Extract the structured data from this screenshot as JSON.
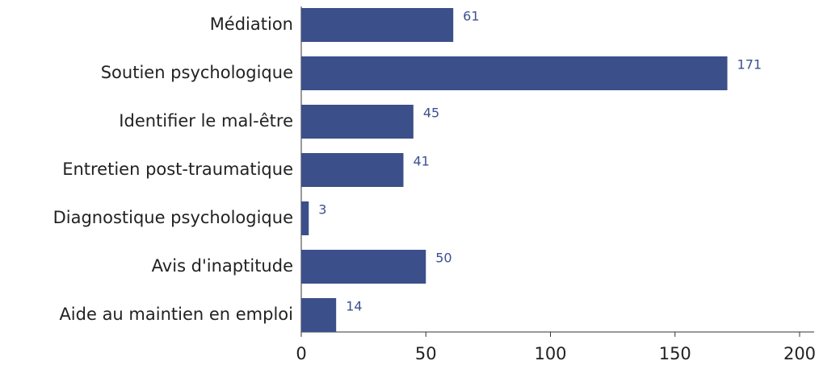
{
  "chart_data": {
    "type": "bar",
    "orientation": "horizontal",
    "categories": [
      "Médiation",
      "Soutien psychologique",
      "Identifier le mal-être",
      "Entretien post-traumatique",
      "Diagnostique psychologique",
      "Avis d'inaptitude",
      "Aide au maintien en emploi"
    ],
    "values": [
      61,
      171,
      45,
      41,
      3,
      50,
      14
    ],
    "color": "#3b4f8a",
    "xlim": [
      0,
      200
    ],
    "xticks": [
      0,
      50,
      100,
      150,
      200
    ],
    "grid": false
  }
}
